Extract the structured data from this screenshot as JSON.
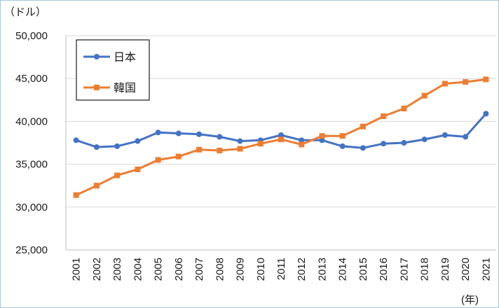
{
  "chart_data": {
    "type": "line",
    "title": "",
    "ylabel": "（ドル）",
    "xlabel": "(年)",
    "ylim": [
      25000,
      50000
    ],
    "yticks": [
      25000,
      30000,
      35000,
      40000,
      45000,
      50000
    ],
    "ytick_labels": [
      "25,000",
      "30,000",
      "35,000",
      "40,000",
      "45,000",
      "50,000"
    ],
    "categories": [
      "2001",
      "2002",
      "2003",
      "2004",
      "2005",
      "2006",
      "2007",
      "2008",
      "2009",
      "2010",
      "2011",
      "2012",
      "2013",
      "2014",
      "2015",
      "2016",
      "2017",
      "2018",
      "2019",
      "2020",
      "2021"
    ],
    "grid": true,
    "legend_position": "top-left",
    "series": [
      {
        "name": "日本",
        "color": "#4472c4",
        "marker": "circle",
        "values": [
          37800,
          37000,
          37100,
          37700,
          38700,
          38600,
          38500,
          38200,
          37700,
          37800,
          38400,
          37800,
          37800,
          37100,
          36900,
          37400,
          37500,
          37900,
          38400,
          38200,
          40900
        ]
      },
      {
        "name": "韓国",
        "color": "#ed7d31",
        "marker": "square",
        "values": [
          31400,
          32500,
          33700,
          34400,
          35500,
          35900,
          36700,
          36600,
          36800,
          37400,
          37900,
          37300,
          38300,
          38300,
          39400,
          40600,
          41500,
          43000,
          44400,
          44600,
          44900
        ]
      }
    ]
  }
}
